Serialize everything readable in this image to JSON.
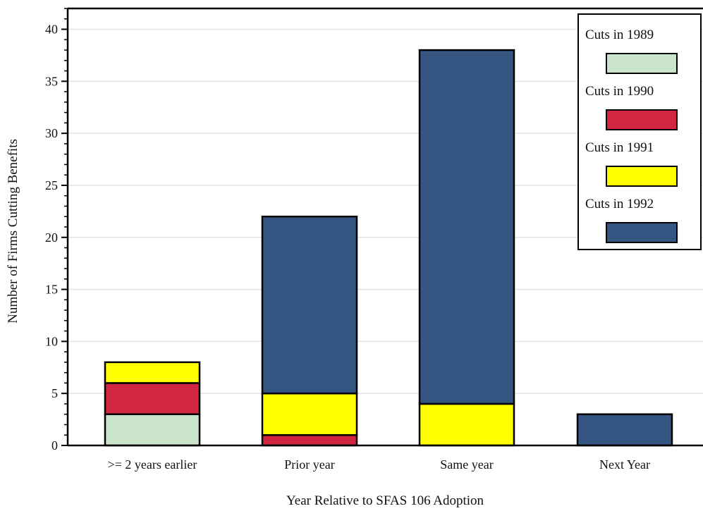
{
  "chart_data": {
    "type": "bar",
    "stacked": true,
    "title": "",
    "xlabel": "Year Relative to SFAS 106 Adoption",
    "ylabel": "Number of Firms Cutting Benefits",
    "categories": [
      ">= 2 years earlier",
      "Prior year",
      "Same year",
      "Next Year"
    ],
    "series": [
      {
        "name": "Cuts in 1989",
        "color": "#c9e4cb",
        "values": [
          3,
          0,
          0,
          0
        ]
      },
      {
        "name": "Cuts in 1990",
        "color": "#d12640",
        "values": [
          3,
          1,
          0,
          0
        ]
      },
      {
        "name": "Cuts in 1991",
        "color": "#ffff00",
        "values": [
          2,
          4,
          4,
          0
        ]
      },
      {
        "name": "Cuts in 1992",
        "color": "#345482",
        "values": [
          0,
          17,
          34,
          3
        ]
      }
    ],
    "ylim": [
      0,
      42
    ],
    "yticks": [
      "0",
      "5",
      "10",
      "15",
      "20",
      "25",
      "30",
      "35",
      "40"
    ],
    "grid": true,
    "legend_position": "top-right"
  }
}
